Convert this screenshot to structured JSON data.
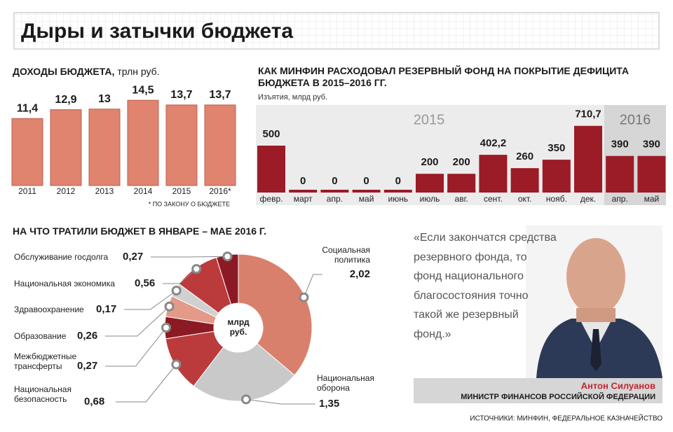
{
  "title": "Дыры и затычки бюджета",
  "chart_data": [
    {
      "type": "bar",
      "title": "ДОХОДЫ БЮДЖЕТА,",
      "subtitle": "трлн руб.",
      "categories": [
        "2011",
        "2012",
        "2013",
        "2014",
        "2015",
        "2016*"
      ],
      "values": [
        11.4,
        12.9,
        13,
        14.5,
        13.7,
        13.7
      ],
      "value_labels": [
        "11,4",
        "12,9",
        "13",
        "14,5",
        "13,7",
        "13,7"
      ],
      "color": "#e0836f",
      "note": "* ПО ЗАКОНУ О БЮДЖЕТЕ"
    },
    {
      "type": "bar",
      "title": "КАК МИНФИН РАСХОДОВАЛ РЕЗЕРВНЫЙ ФОНД НА ПОКРЫТИЕ ДЕФИЦИТА БЮДЖЕТА В 2015–2016 ГГ.",
      "subtitle": "Изъятия, млрд руб.",
      "groups": [
        "2015",
        "2016"
      ],
      "categories": [
        "февр.",
        "март",
        "апр.",
        "май",
        "июнь",
        "июль",
        "авг.",
        "сент.",
        "окт.",
        "нояб.",
        "дек.",
        "апр.",
        "май"
      ],
      "values": [
        500,
        0,
        0,
        0,
        0,
        200,
        200,
        402.2,
        260,
        350,
        710.7,
        390,
        390
      ],
      "value_labels": [
        "500",
        "0",
        "0",
        "0",
        "0",
        "200",
        "200",
        "402,2",
        "260",
        "350",
        "710,7",
        "390",
        "390"
      ],
      "color": "#9b1b27"
    },
    {
      "type": "pie",
      "title": "НА ЧТО ТРАТИЛИ БЮДЖЕТ В ЯНВАРЕ – МАЕ 2016 Г.",
      "center_label": "млрд руб.",
      "categories": [
        "Социальная политика",
        "Национальная оборона",
        "Национальная безопасность",
        "Межбюджетные трансферты",
        "Образование",
        "Здравоохранение",
        "Национальная экономика",
        "Обслуживание госдолга"
      ],
      "values": [
        2.02,
        1.35,
        0.68,
        0.27,
        0.26,
        0.17,
        0.56,
        0.27
      ],
      "value_labels": [
        "2,02",
        "1,35",
        "0,68",
        "0,27",
        "0,26",
        "0,17",
        "0,56",
        "0,27"
      ],
      "colors": [
        "#d9806c",
        "#c9c9c9",
        "#bb3a3b",
        "#8c1a24",
        "#e39a89",
        "#d0d0d0",
        "#bb3a3b",
        "#8c1a24"
      ]
    }
  ],
  "quote": "«Если закончатся средства резервного фонда, то фонд национального благосостояния точно такой же резервный фонд.»",
  "person": "Антон Силуанов",
  "position": "МИНИСТР ФИНАНСОВ РОССИЙСКОЙ ФЕДЕРАЦИИ",
  "sources": "ИСТОЧНИКИ: МИНФИН, ФЕДЕРАЛЬНОЕ КАЗНАЧЕЙСТВО"
}
